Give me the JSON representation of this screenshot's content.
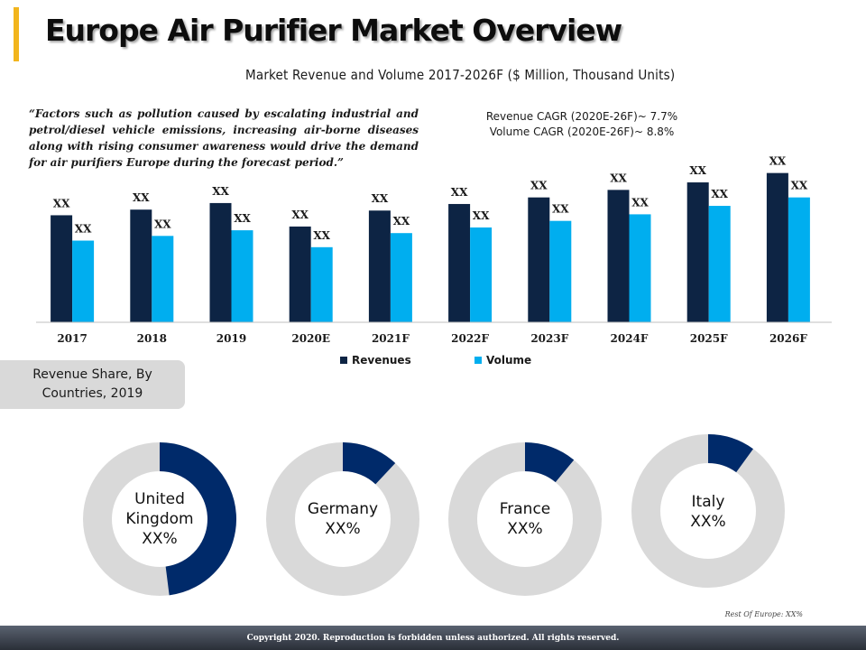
{
  "header": {
    "title": "Europe Air Purifier Market Overview",
    "subtitle": "Market Revenue and Volume 2017-2026F ($ Million, Thousand Units)"
  },
  "quote": "“Factors such as pollution caused by escalating industrial and petrol/diesel vehicle emissions, increasing air-borne diseases along with rising consumer awareness would drive the demand for air purifiers Europe during the forecast period.”",
  "cagr": {
    "revenue": "Revenue CAGR (2020E-26F)~ 7.7%",
    "volume": "Volume CAGR (2020E-26F)~ 8.8%"
  },
  "colors": {
    "revenue": "#0d2444",
    "volume": "#00aeef",
    "donut_fill": "#002a6a",
    "donut_rest": "#d9d9d9",
    "accent": "#f2b51d"
  },
  "chart_data": [
    {
      "type": "bar",
      "categories": [
        "2017",
        "2018",
        "2019",
        "2020E",
        "2021F",
        "2022F",
        "2023F",
        "2024F",
        "2025F",
        "2026F"
      ],
      "series": [
        {
          "name": "Revenues",
          "values": [
            114,
            120,
            127,
            102,
            119,
            126,
            133,
            141,
            149,
            159
          ],
          "labels": [
            "XX",
            "XX",
            "XX",
            "XX",
            "XX",
            "XX",
            "XX",
            "XX",
            "XX",
            "XX"
          ]
        },
        {
          "name": "Volume",
          "values": [
            87,
            92,
            98,
            80,
            95,
            101,
            108,
            115,
            124,
            133
          ],
          "labels": [
            "XX",
            "XX",
            "XX",
            "XX",
            "XX",
            "XX",
            "XX",
            "XX",
            "XX",
            "XX"
          ]
        }
      ],
      "ylim": [
        0,
        175
      ],
      "legend": "bottom-center"
    },
    {
      "type": "pie",
      "title": "Revenue Share, By Countries, 2019",
      "slices": [
        {
          "name": "United Kingdom",
          "label_lines": [
            "United",
            "Kingdom",
            "XX%"
          ],
          "share": 0.48
        },
        {
          "name": "Germany",
          "label_lines": [
            "Germany",
            "XX%"
          ],
          "share": 0.12
        },
        {
          "name": "France",
          "label_lines": [
            "France",
            "XX%"
          ],
          "share": 0.11
        },
        {
          "name": "Italy",
          "label_lines": [
            "Italy",
            "XX%"
          ],
          "share": 0.1
        }
      ],
      "note": "Rest Of Europe: XX%"
    }
  ],
  "footer": {
    "copyright": "Copyright 2020. Reproduction is forbidden unless authorized. All rights reserved."
  }
}
